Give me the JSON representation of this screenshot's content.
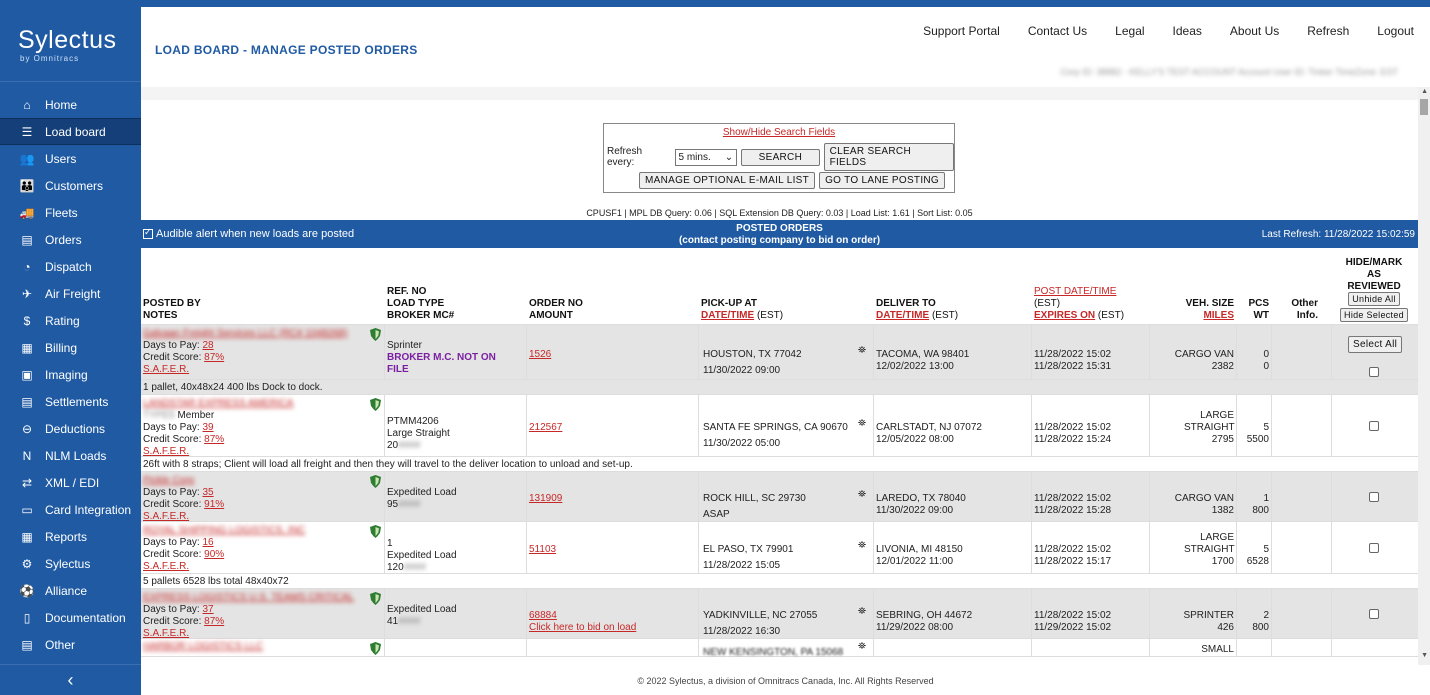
{
  "app": {
    "brand": "Sylectus",
    "sub": "by Omnitracs"
  },
  "sidebar": {
    "items": [
      {
        "label": "Home",
        "icon": "home-icon",
        "glyph": "⌂"
      },
      {
        "label": "Load board",
        "icon": "list-icon",
        "glyph": "☰"
      },
      {
        "label": "Users",
        "icon": "users-icon",
        "glyph": "👥"
      },
      {
        "label": "Customers",
        "icon": "customers-icon",
        "glyph": "👪"
      },
      {
        "label": "Fleets",
        "icon": "truck-icon",
        "glyph": "🚚"
      },
      {
        "label": "Orders",
        "icon": "orders-icon",
        "glyph": "▤"
      },
      {
        "label": "Dispatch",
        "icon": "dispatch-icon",
        "glyph": "◔"
      },
      {
        "label": "Air Freight",
        "icon": "plane-icon",
        "glyph": "✈"
      },
      {
        "label": "Rating",
        "icon": "rating-icon",
        "glyph": "$"
      },
      {
        "label": "Billing",
        "icon": "billing-icon",
        "glyph": "▦"
      },
      {
        "label": "Imaging",
        "icon": "image-icon",
        "glyph": "▣"
      },
      {
        "label": "Settlements",
        "icon": "settlements-icon",
        "glyph": "▤"
      },
      {
        "label": "Deductions",
        "icon": "deductions-icon",
        "glyph": "⊖"
      },
      {
        "label": "NLM Loads",
        "icon": "nlm-icon",
        "glyph": "N"
      },
      {
        "label": "XML / EDI",
        "icon": "xml-icon",
        "glyph": "⇄"
      },
      {
        "label": "Card Integration",
        "icon": "card-icon",
        "glyph": "▭"
      },
      {
        "label": "Reports",
        "icon": "reports-icon",
        "glyph": "▦"
      },
      {
        "label": "Sylectus",
        "icon": "sylectus-icon",
        "glyph": "⚙"
      },
      {
        "label": "Alliance",
        "icon": "alliance-icon",
        "glyph": "⚽"
      },
      {
        "label": "Documentation",
        "icon": "documentation-icon",
        "glyph": "▯"
      },
      {
        "label": "Other",
        "icon": "other-icon",
        "glyph": "▤"
      }
    ],
    "collapse_glyph": "‹"
  },
  "header": {
    "title": "LOAD BOARD - MANAGE POSTED ORDERS",
    "links": [
      "Support Portal",
      "Contact Us",
      "Legal",
      "Ideas",
      "About Us",
      "Refresh",
      "Logout"
    ],
    "account_info": "Corp ID: 38882 - KELLY'S TEST ACCOUNT   Account User ID: Tinker TimeZone: EST"
  },
  "search": {
    "show_hide": "Show/Hide Search Fields",
    "refresh_label": "Refresh every:",
    "refresh_value": "5 mins.",
    "search_btn": "SEARCH",
    "clear_btn": "CLEAR SEARCH FIELDS",
    "email_btn": "MANAGE OPTIONAL E-MAIL LIST",
    "lane_btn": "GO TO LANE POSTING"
  },
  "stats": "CPUSF1 | MPL DB Query: 0.06 | SQL Extension DB Query: 0.03 | Load List: 1.61 | Sort List: 0.05",
  "posted": {
    "alert": "Audible alert when new loads are posted",
    "title1": "POSTED ORDERS",
    "title2": "(contact posting company to bid on order)",
    "last_refresh": "Last Refresh: 11/28/2022 15:02:59"
  },
  "columns": {
    "posted_by": "POSTED BY",
    "notes": "NOTES",
    "ref_no": "REF. NO",
    "load_type": "LOAD TYPE",
    "broker_mc": "BROKER MC#",
    "order_no": "ORDER NO",
    "amount": "AMOUNT",
    "pickup": "PICK-UP AT",
    "pickup_dt": "DATE/TIME",
    "pickup_tz": "(EST)",
    "deliver": "DELIVER TO",
    "deliver_dt": "DATE/TIME",
    "deliver_tz": "(EST)",
    "post_dt": "POST DATE/TIME",
    "post_tz": "(EST)",
    "expires": "EXPIRES ON",
    "expires_tz": "(EST)",
    "veh_size": "VEH. SIZE",
    "miles": "MILES",
    "pcs": "PCS",
    "wt": "WT",
    "other": "Other",
    "info": "Info.",
    "hide1": "HIDE/MARK",
    "hide2": "AS",
    "hide3": "REVIEWED",
    "unhide_all": "Unhide All",
    "hide_selected": "Hide Selected",
    "select_all": "Select All"
  },
  "rows": [
    {
      "company": "Galvaan Freight Services LLC (RC# 1048268)",
      "member": "",
      "days_label": "Days to Pay:",
      "days": "28",
      "credit_label": "Credit Score:",
      "credit": "87%",
      "safer": "S.A.F.E.R.",
      "ref": "",
      "load_type": "Sprinter",
      "broker": "BROKER M.C. NOT ON FILE",
      "order": "1526",
      "bid": "",
      "pickup": "HOUSTON, TX 77042",
      "pickup_dt": "11/30/2022 09:00",
      "deliver": "TACOMA, WA 98401",
      "deliver_dt": "12/02/2022 13:00",
      "post": "11/28/2022 15:02",
      "expires": "11/28/2022 15:31",
      "veh": "CARGO VAN",
      "miles": "2382",
      "pcs": "0",
      "wt": "0",
      "note": "1 pallet, 40x48x24 400 lbs Dock to dock."
    },
    {
      "company": "LANDSTAR EXPRESS AMERICA",
      "member": "Member",
      "member_blur": "TYPE5",
      "days_label": "Days to Pay:",
      "days": "39",
      "credit_label": "Credit Score:",
      "credit": "87%",
      "safer": "S.A.F.E.R.",
      "ref": "PTMM4206",
      "load_type": "Large Straight",
      "broker": "20",
      "order": "212567",
      "bid": "",
      "pickup": "SANTA FE SPRINGS, CA 90670",
      "pickup_dt": "11/30/2022 05:00",
      "deliver": "CARLSTADT, NJ 07072",
      "deliver_dt": "12/05/2022 08:00",
      "post": "11/28/2022 15:02",
      "expires": "11/28/2022 15:24",
      "veh": "LARGE STRAIGHT",
      "miles": "2795",
      "pcs": "5",
      "wt": "5500",
      "note": "26ft with 8 straps; Client will load all freight and then they will travel to the deliver location to unload and set-up."
    },
    {
      "company": "Pickle Corp",
      "member": "",
      "days_label": "Days to Pay:",
      "days": "35",
      "credit_label": "Credit Score:",
      "credit": "91%",
      "safer": "S.A.F.E.R.",
      "ref": "",
      "load_type": "Expedited Load",
      "broker": "95",
      "order": "131909",
      "bid": "",
      "pickup": "ROCK HILL, SC 29730",
      "pickup_dt": "ASAP",
      "deliver": "LAREDO, TX 78040",
      "deliver_dt": "11/30/2022 09:00",
      "post": "11/28/2022 15:02",
      "expires": "11/28/2022 15:28",
      "veh": "CARGO VAN",
      "miles": "1382",
      "pcs": "1",
      "wt": "800",
      "note": ""
    },
    {
      "company": "ROYAL SHIPPING LOGISTICS, INC",
      "member": "",
      "days_label": "Days to Pay:",
      "days": "16",
      "credit_label": "Credit Score:",
      "credit": "90%",
      "safer": "S.A.F.E.R.",
      "ref": "1",
      "load_type": "Expedited Load",
      "broker": "120",
      "order": "51103",
      "bid": "",
      "pickup": "EL PASO, TX 79901",
      "pickup_dt": "11/28/2022 15:05",
      "deliver": "LIVONIA, MI 48150",
      "deliver_dt": "12/01/2022 11:00",
      "post": "11/28/2022 15:02",
      "expires": "11/28/2022 15:17",
      "veh": "LARGE STRAIGHT",
      "miles": "1700",
      "pcs": "5",
      "wt": "6528",
      "note": "5 pallets 6528 lbs total 48x40x72"
    },
    {
      "company": "EXPRESS LOGISTICS U.S. TEAMS CRITICAL",
      "member": "",
      "days_label": "Days to Pay:",
      "days": "37",
      "credit_label": "Credit Score:",
      "credit": "87%",
      "safer": "S.A.F.E.R.",
      "ref": "",
      "load_type": "Expedited Load",
      "broker": "41",
      "order": "68884",
      "bid": "Click here to bid on load",
      "pickup": "YADKINVILLE, NC 27055",
      "pickup_dt": "11/28/2022 16:30",
      "deliver": "SEBRING, OH 44672",
      "deliver_dt": "11/29/2022 08:00",
      "post": "11/28/2022 15:02",
      "expires": "11/29/2022 15:02",
      "veh": "SPRINTER",
      "miles": "426",
      "pcs": "2",
      "wt": "800",
      "note": ""
    },
    {
      "company": "HARBOR LOGISTICS LLC",
      "pickup": "NEW KENSINGTON, PA 15068",
      "veh": "SMALL"
    }
  ],
  "footer": "© 2022 Sylectus, a division of Omnitracs Canada, Inc. All Rights Reserved",
  "colors": {
    "brand": "#1f5aa3",
    "link_red": "#c62828",
    "broker_purple": "#7b1fa2"
  }
}
